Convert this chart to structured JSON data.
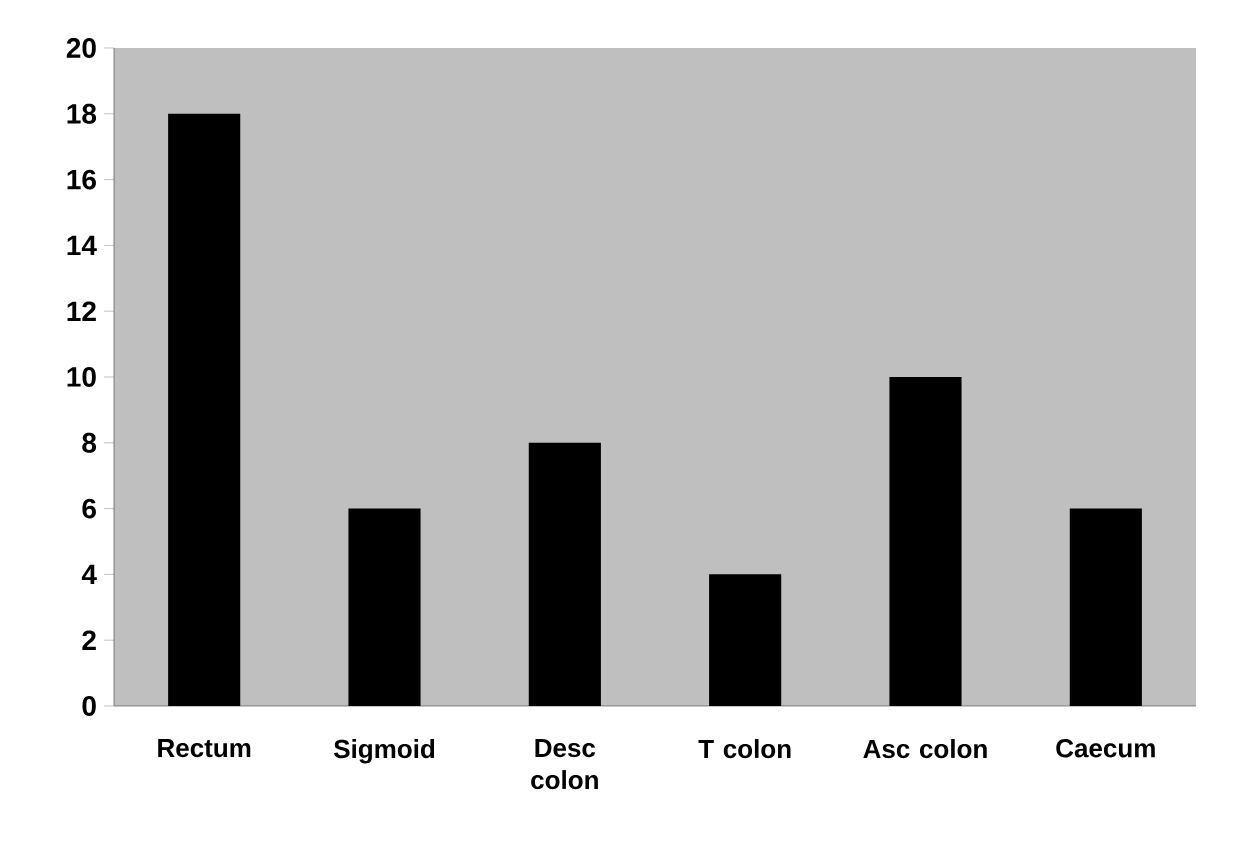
{
  "chart_data": {
    "type": "bar",
    "categories": [
      "Rectum",
      "Sigmoid",
      "Desc colon",
      "T colon",
      "Asc colon",
      "Caecum"
    ],
    "values": [
      18,
      6,
      8,
      4,
      10,
      6
    ],
    "color": "#000000",
    "ylim": [
      0,
      20
    ],
    "yticks": [
      0,
      2,
      4,
      6,
      8,
      10,
      12,
      14,
      16,
      18,
      20
    ],
    "grid": false
  }
}
